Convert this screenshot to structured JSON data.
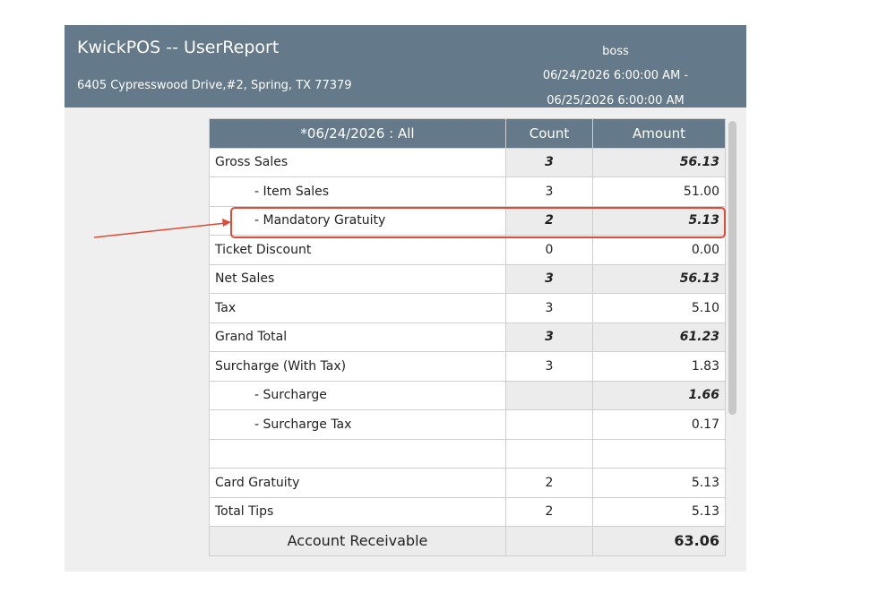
{
  "header": {
    "title": "KwickPOS -- UserReport",
    "address": "6405 Cypresswood Drive,#2, Spring, TX 77379",
    "user": "boss",
    "date_range": [
      "06/24/2026 6:00:00 AM -",
      "06/25/2026 6:00:00 AM"
    ]
  },
  "table": {
    "columns": [
      "*06/24/2026 : All",
      "Count",
      "Amount"
    ],
    "rows": [
      [
        "Gross Sales",
        "3",
        "56.13"
      ],
      [
        "- Item Sales",
        "3",
        "51.00"
      ],
      [
        "- Mandatory Gratuity",
        "2",
        "5.13"
      ],
      [
        "Ticket Discount",
        "0",
        "0.00"
      ],
      [
        "Net Sales",
        "3",
        "56.13"
      ],
      [
        "Tax",
        "3",
        "5.10"
      ],
      [
        "Grand Total",
        "3",
        "61.23"
      ],
      [
        "Surcharge (With Tax)",
        "3",
        "1.83"
      ],
      [
        "- Surcharge",
        null,
        "1.66"
      ],
      [
        "- Surcharge Tax",
        null,
        "0.17"
      ],
      [
        "Card Gratuity",
        "2",
        "5.13"
      ],
      [
        "Total Tips",
        "2",
        "5.13"
      ],
      [
        "Account Receivable",
        null,
        "63.06"
      ]
    ]
  }
}
